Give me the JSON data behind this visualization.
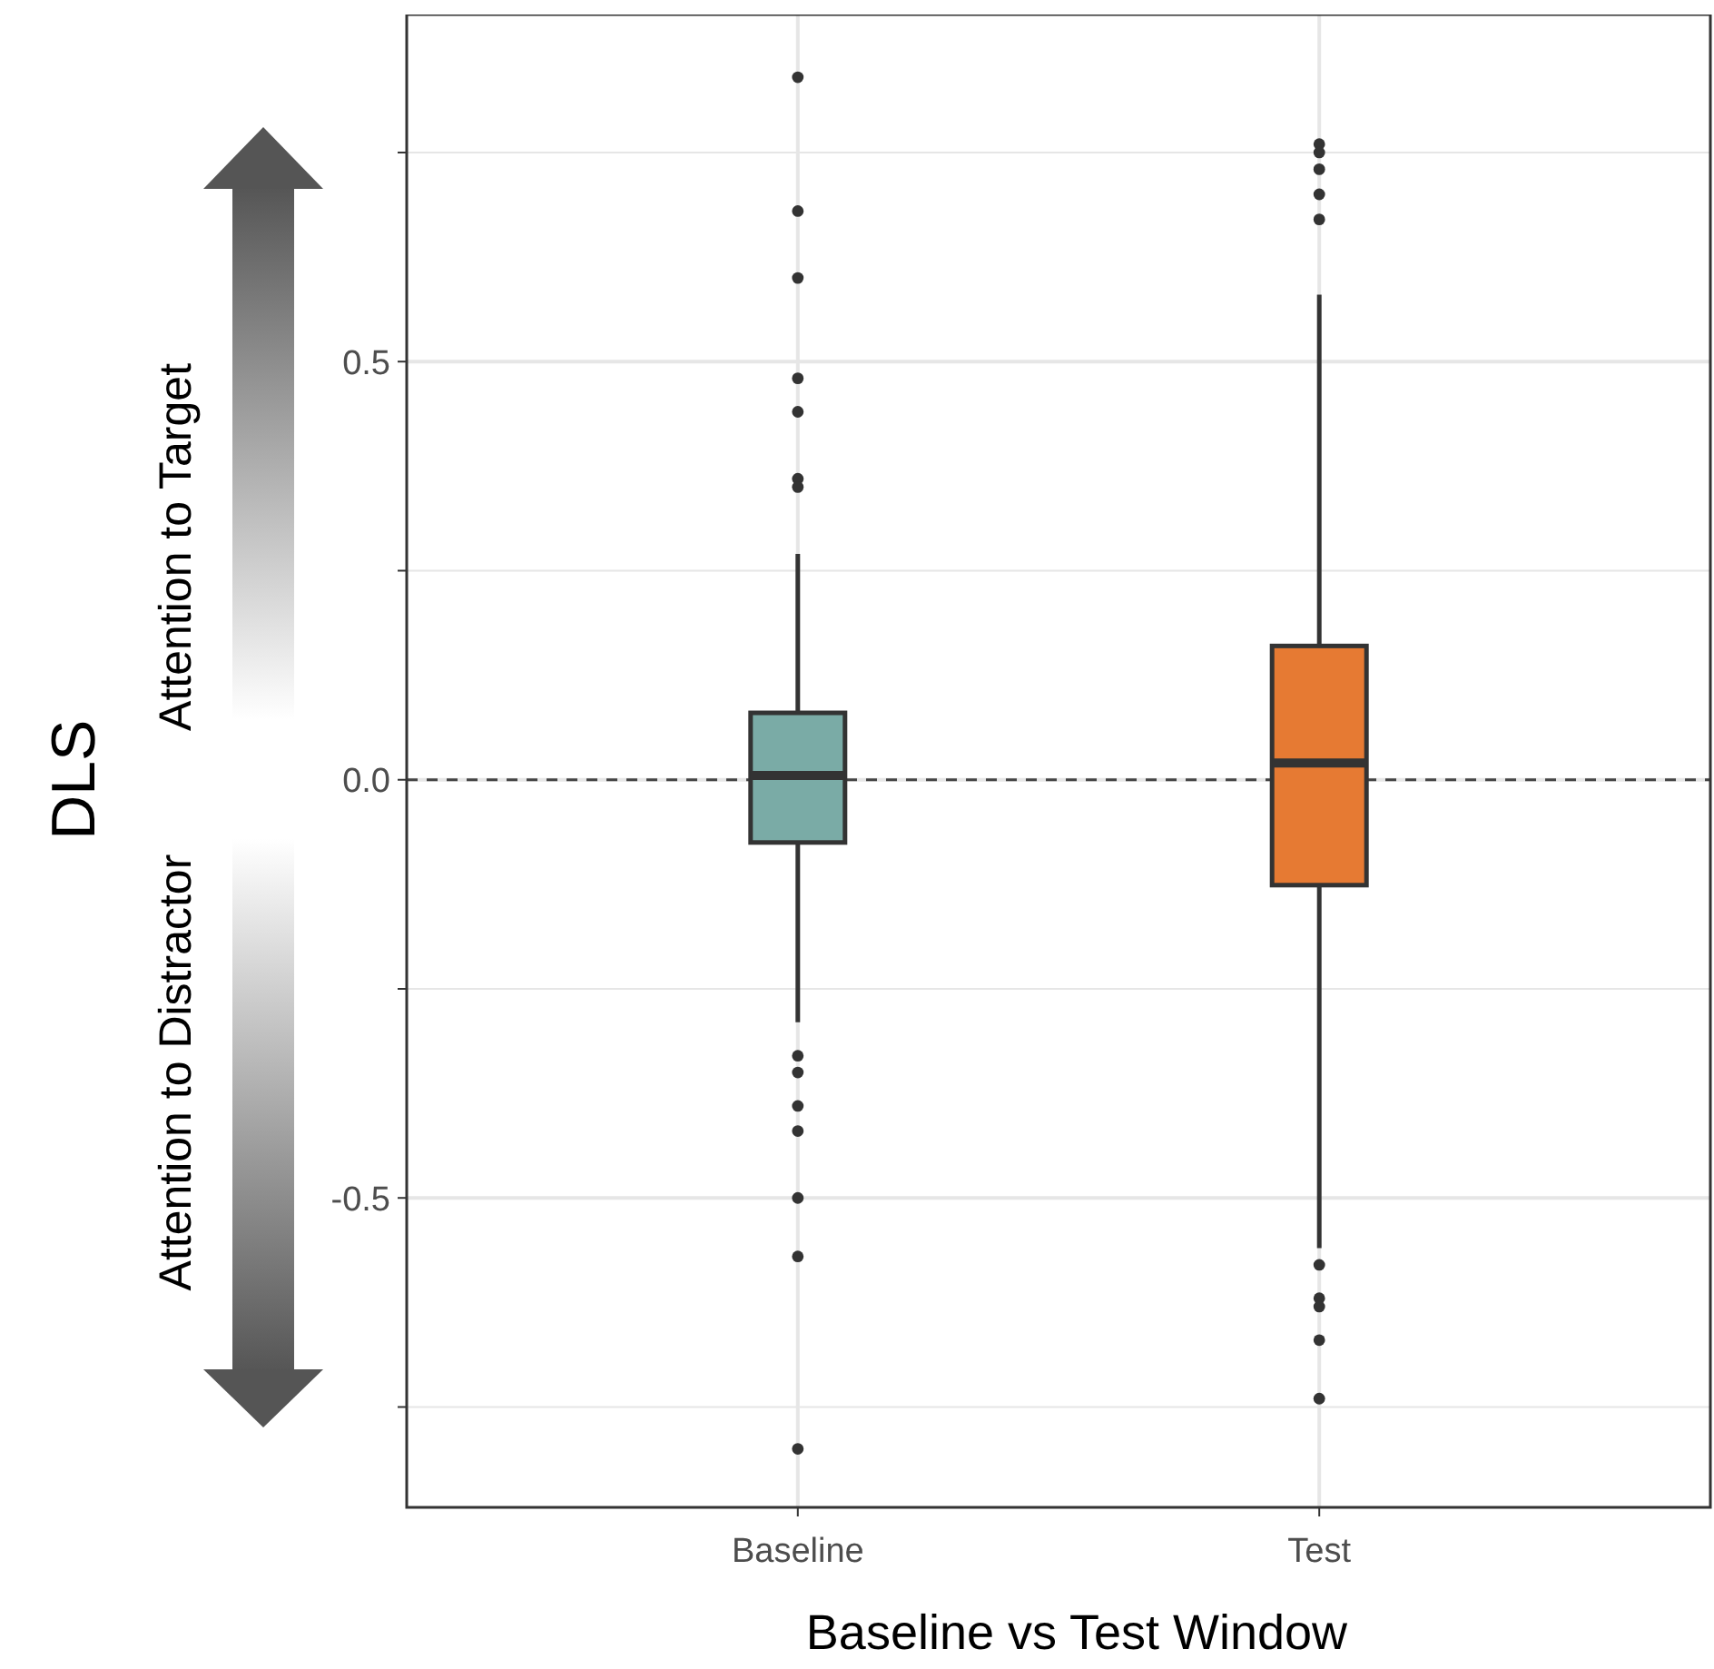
{
  "chart_data": {
    "type": "box",
    "xlabel": "Baseline vs Test Window",
    "ylabel": "DLS",
    "categories": [
      "Baseline",
      "Test"
    ],
    "colors": [
      "#7aaba6",
      "#e67a33"
    ],
    "boxes": [
      {
        "low": -0.29,
        "q1": -0.075,
        "median": 0.005,
        "q3": 0.08,
        "high": 0.27,
        "outliers": [
          0.84,
          0.68,
          0.6,
          0.48,
          0.44,
          0.36,
          0.35,
          -0.33,
          -0.35,
          -0.39,
          -0.42,
          -0.5,
          -0.57,
          -0.8
        ]
      },
      {
        "low": -0.56,
        "q1": -0.126,
        "median": 0.02,
        "q3": 0.16,
        "high": 0.58,
        "outliers": [
          0.76,
          0.75,
          0.73,
          0.7,
          0.67,
          -0.58,
          -0.62,
          -0.63,
          -0.67,
          -0.74
        ]
      }
    ],
    "ylim": [
      -0.87,
      0.915
    ],
    "yticks": [
      {
        "value": -0.75,
        "label": null
      },
      {
        "value": -0.5,
        "label": "-0.5"
      },
      {
        "value": -0.25,
        "label": null
      },
      {
        "value": 0,
        "label": "0.0"
      },
      {
        "value": 0.25,
        "label": null
      },
      {
        "value": 0.5,
        "label": "0.5"
      },
      {
        "value": 0.75,
        "label": null
      }
    ],
    "grid": true,
    "ref_lines": [
      {
        "axis": "y",
        "value": 0,
        "line_style": "dashed",
        "color": "#444444"
      }
    ],
    "annotations": [
      "Attention to Target",
      "Attention to Distractor"
    ]
  }
}
